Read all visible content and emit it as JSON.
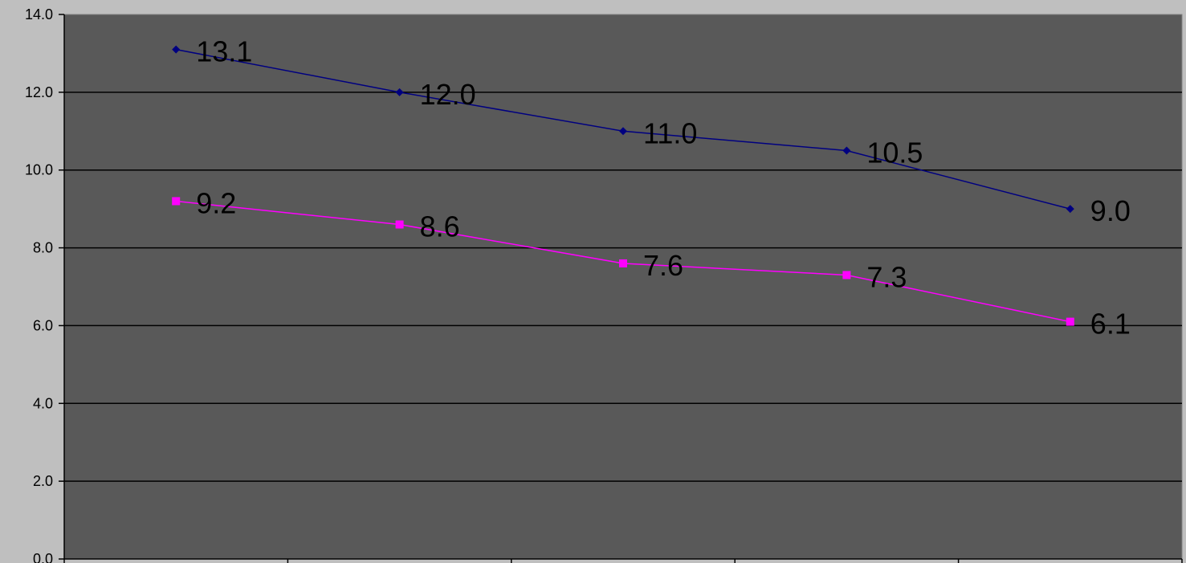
{
  "chart_data": {
    "type": "line",
    "title": "",
    "xlabel": "",
    "ylabel": "",
    "categories": [
      "",
      "",
      "",
      "",
      ""
    ],
    "ylim": [
      0,
      14
    ],
    "y_ticks": [
      0,
      2,
      4,
      6,
      8,
      10,
      12,
      14
    ],
    "y_tick_labels": [
      "0.0",
      "2.0",
      "4.0",
      "6.0",
      "8.0",
      "10.0",
      "12.0",
      "14.0"
    ],
    "grid": true,
    "legend": "none",
    "plot_background": "#595959",
    "outer_background": "#bfbfbf",
    "series": [
      {
        "values": [
          13.1,
          12.0,
          11.0,
          10.5,
          9.0
        ],
        "labels": [
          "13.1",
          "12.0",
          "11.0",
          "10.5",
          "9.0"
        ],
        "color": "#000080",
        "marker": "diamond"
      },
      {
        "values": [
          9.2,
          8.6,
          7.6,
          7.3,
          6.1
        ],
        "labels": [
          "9.2",
          "8.6",
          "7.6",
          "7.3",
          "6.1"
        ],
        "color": "#ff00ff",
        "marker": "square"
      }
    ]
  }
}
